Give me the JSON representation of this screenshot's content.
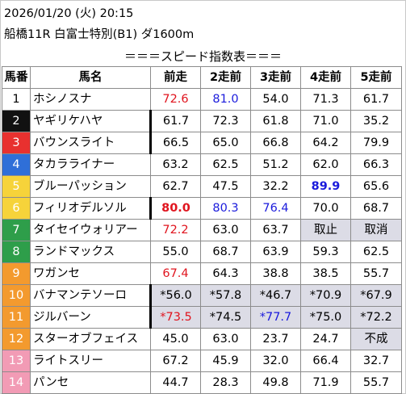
{
  "header": {
    "datetime": "2026/01/20 (火) 20:15",
    "race": "船橋11R 白富士特別(B1) ダ1600m",
    "title": "＝＝＝スピード指数表＝＝＝"
  },
  "columns": [
    "馬番",
    "馬名",
    "前走",
    "2走前",
    "3走前",
    "4走前",
    "5走前"
  ],
  "waku_colors": {
    "1": "#ffffff",
    "2": "#111111",
    "3": "#e8312f",
    "4": "#2f6fd8",
    "5": "#f6d33a",
    "6": "#2e9e4a",
    "7": "#f39a2e",
    "8": "#f29bb5"
  },
  "rows": [
    {
      "no": "1",
      "waku": 1,
      "name": "ホシノスナ",
      "sep": false,
      "vals": [
        {
          "t": "72.6",
          "c": "red"
        },
        {
          "t": "81.0",
          "c": "blue"
        },
        {
          "t": "54.0"
        },
        {
          "t": "71.3"
        },
        {
          "t": "61.7"
        }
      ]
    },
    {
      "no": "2",
      "waku": 2,
      "name": "ヤギリケハヤ",
      "sep": true,
      "vals": [
        {
          "t": "61.7"
        },
        {
          "t": "72.3"
        },
        {
          "t": "61.8"
        },
        {
          "t": "71.0"
        },
        {
          "t": "35.2"
        }
      ]
    },
    {
      "no": "3",
      "waku": 3,
      "name": "バウンスライト",
      "sep": true,
      "vals": [
        {
          "t": "66.5"
        },
        {
          "t": "65.0"
        },
        {
          "t": "66.8"
        },
        {
          "t": "64.2"
        },
        {
          "t": "79.9"
        }
      ]
    },
    {
      "no": "4",
      "waku": 4,
      "name": "タカラライナー",
      "sep": false,
      "vals": [
        {
          "t": "63.2"
        },
        {
          "t": "62.5"
        },
        {
          "t": "51.2"
        },
        {
          "t": "62.0"
        },
        {
          "t": "66.3"
        }
      ]
    },
    {
      "no": "5",
      "waku": 5,
      "name": "ブルーパッション",
      "sep": false,
      "vals": [
        {
          "t": "62.7"
        },
        {
          "t": "47.5"
        },
        {
          "t": "32.2"
        },
        {
          "t": "89.9",
          "c": "blue",
          "b": true
        },
        {
          "t": "65.6"
        }
      ]
    },
    {
      "no": "6",
      "waku": 5,
      "name": "フィリオデルソル",
      "sep": true,
      "vals": [
        {
          "t": "80.0",
          "c": "red",
          "b": true
        },
        {
          "t": "80.3",
          "c": "blue"
        },
        {
          "t": "76.4",
          "c": "blue"
        },
        {
          "t": "70.0"
        },
        {
          "t": "68.7"
        }
      ]
    },
    {
      "no": "7",
      "waku": 6,
      "name": "タイセイウォリアー",
      "sep": false,
      "vals": [
        {
          "t": "72.2",
          "c": "red"
        },
        {
          "t": "63.0"
        },
        {
          "t": "63.7"
        },
        {
          "t": "取止",
          "g": true
        },
        {
          "t": "取消",
          "g": true
        }
      ]
    },
    {
      "no": "8",
      "waku": 6,
      "name": "ランドマックス",
      "sep": false,
      "vals": [
        {
          "t": "55.0"
        },
        {
          "t": "68.7"
        },
        {
          "t": "63.9"
        },
        {
          "t": "59.3"
        },
        {
          "t": "62.5"
        }
      ]
    },
    {
      "no": "9",
      "waku": 7,
      "name": "ワガンセ",
      "sep": false,
      "vals": [
        {
          "t": "67.4",
          "c": "red"
        },
        {
          "t": "64.3"
        },
        {
          "t": "38.8"
        },
        {
          "t": "38.5"
        },
        {
          "t": "55.7"
        }
      ]
    },
    {
      "no": "10",
      "waku": 7,
      "name": "バナマンテソーロ",
      "sep": true,
      "vals": [
        {
          "t": "*56.0",
          "g": true
        },
        {
          "t": "*57.8",
          "g": true
        },
        {
          "t": "*46.7",
          "g": true
        },
        {
          "t": "*70.9",
          "g": true
        },
        {
          "t": "*67.9",
          "g": true
        }
      ]
    },
    {
      "no": "11",
      "waku": 7,
      "name": "ジルバーン",
      "sep": true,
      "vals": [
        {
          "t": "*73.5",
          "c": "red",
          "g": true
        },
        {
          "t": "*74.5",
          "g": true
        },
        {
          "t": "*77.7",
          "c": "blue",
          "g": true
        },
        {
          "t": "*75.0",
          "g": true
        },
        {
          "t": "*72.2",
          "g": true
        }
      ]
    },
    {
      "no": "12",
      "waku": 7,
      "name": "スターオブフェイス",
      "sep": false,
      "vals": [
        {
          "t": "45.0"
        },
        {
          "t": "63.0"
        },
        {
          "t": "23.7"
        },
        {
          "t": "24.7"
        },
        {
          "t": "不成",
          "g": true
        }
      ]
    },
    {
      "no": "13",
      "waku": 8,
      "name": "ライトスリー",
      "sep": false,
      "vals": [
        {
          "t": "67.2"
        },
        {
          "t": "45.9"
        },
        {
          "t": "32.0"
        },
        {
          "t": "66.4"
        },
        {
          "t": "32.7"
        }
      ]
    },
    {
      "no": "14",
      "waku": 8,
      "name": "パンセ",
      "sep": false,
      "vals": [
        {
          "t": "44.7"
        },
        {
          "t": "28.3"
        },
        {
          "t": "49.8"
        },
        {
          "t": "71.9"
        },
        {
          "t": "55.7"
        }
      ]
    }
  ]
}
